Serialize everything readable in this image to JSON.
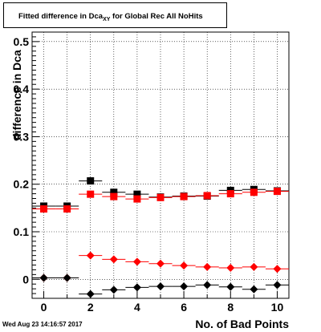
{
  "chart_data": {
    "type": "scatter",
    "title": "Fitted difference in Dca",
    "title_sub": "XY",
    "title_rest": " for Global Rec All NoHits",
    "xlabel": "No. of Bad Points",
    "ylabel": "difference in Dca",
    "xlim": [
      -0.5,
      10.5
    ],
    "ylim": [
      -0.04,
      0.52
    ],
    "xticks": [
      0,
      2,
      4,
      6,
      8,
      10
    ],
    "yticks": [
      0,
      0.1,
      0.2,
      0.3,
      0.4,
      0.5
    ],
    "ytick_labels": [
      "0",
      "0.1",
      "0.2",
      "0.3",
      "0.4",
      "0.5"
    ],
    "grid": true,
    "series": [
      {
        "color": "#000000",
        "marker": "square",
        "x": [
          0,
          1,
          2,
          3,
          4,
          5,
          6,
          7,
          8,
          9,
          10
        ],
        "y": [
          0.154,
          0.154,
          0.207,
          0.183,
          0.179,
          0.173,
          0.175,
          0.175,
          0.187,
          0.189,
          0.186
        ]
      },
      {
        "color": "#ff0000",
        "marker": "square",
        "x": [
          0,
          1,
          2,
          3,
          4,
          5,
          6,
          7,
          8,
          9,
          10
        ],
        "y": [
          0.148,
          0.148,
          0.179,
          0.174,
          0.169,
          0.172,
          0.174,
          0.176,
          0.18,
          0.183,
          0.185
        ]
      },
      {
        "color": "#ff0000",
        "marker": "diamond",
        "x": [
          0,
          1,
          2,
          3,
          4,
          5,
          6,
          7,
          8,
          9,
          10
        ],
        "y": [
          0.003,
          0.003,
          0.05,
          0.042,
          0.037,
          0.033,
          0.029,
          0.026,
          0.024,
          0.026,
          0.022
        ]
      },
      {
        "color": "#000000",
        "marker": "diamond",
        "x": [
          0,
          1,
          2,
          3,
          4,
          5,
          6,
          7,
          8,
          9,
          10
        ],
        "y": [
          0.003,
          0.003,
          -0.031,
          -0.022,
          -0.017,
          -0.015,
          -0.015,
          -0.012,
          -0.016,
          -0.021,
          -0.012
        ]
      }
    ]
  },
  "footer": {
    "date": "Wed Aug 23 14:16:57 2017"
  }
}
